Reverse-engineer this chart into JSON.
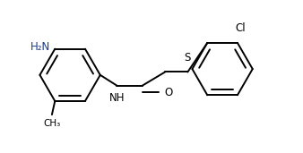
{
  "bg_color": "#ffffff",
  "line_color": "#000000",
  "text_color": "#1a3a8c",
  "label_color": "#000000",
  "line_width": 1.4,
  "figsize": [
    3.38,
    1.71
  ],
  "dpi": 100,
  "xlim": [
    0,
    10.0
  ],
  "ylim": [
    0,
    5.0
  ]
}
